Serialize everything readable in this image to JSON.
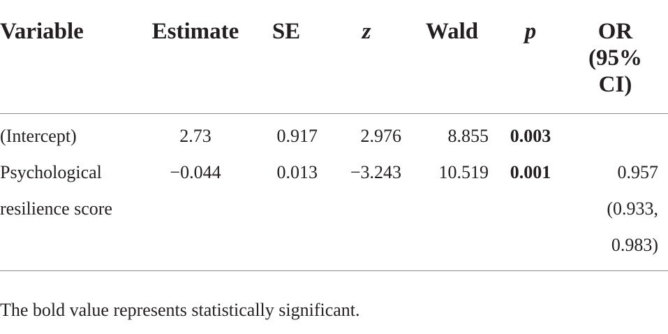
{
  "table": {
    "headers": {
      "variable": "Variable",
      "estimate": "Estimate",
      "se": "SE",
      "z": "z",
      "wald": "Wald",
      "p": "p",
      "or_line1": "OR",
      "or_line2": "(95%",
      "or_line3": "CI)"
    },
    "rows": [
      {
        "variable_line1": "(Intercept)",
        "variable_line2": "",
        "estimate": "2.73",
        "se": "0.917",
        "z": "2.976",
        "wald": "8.855",
        "p": "0.003",
        "p_bold": true,
        "or_line1": "",
        "or_line2": "",
        "or_line3": ""
      },
      {
        "variable_line1": "Psychological",
        "variable_line2": "resilience score",
        "estimate": "−0.044",
        "se": "0.013",
        "z": "−3.243",
        "wald": "10.519",
        "p": "0.001",
        "p_bold": true,
        "or_line1": "0.957",
        "or_line2": "(0.933,",
        "or_line3": "0.983)"
      }
    ]
  },
  "note": "The bold value represents statistically significant."
}
